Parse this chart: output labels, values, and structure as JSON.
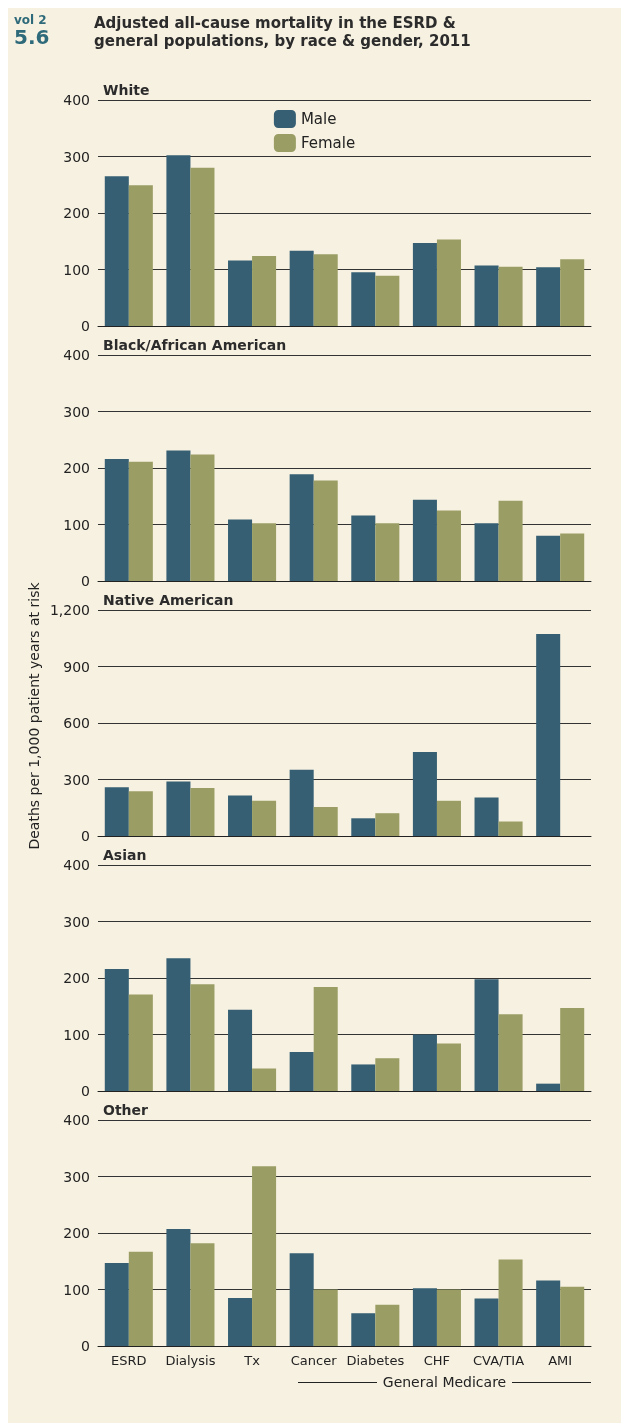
{
  "chart_data": [
    {
      "type": "bar",
      "title": "Adjusted all-cause mortality in the ESRD & general populations, by race & gender, 2011",
      "subtitle": "White",
      "annotations": [
        "vol 2",
        "5.6"
      ],
      "series": [
        {
          "name": "Male",
          "color": "#365f73",
          "values": [
            265,
            302,
            116,
            133,
            95,
            147,
            107,
            104
          ]
        },
        {
          "name": "Female",
          "color": "#9a9e64",
          "values": [
            249,
            280,
            124,
            127,
            89,
            153,
            105,
            118
          ]
        }
      ],
      "ylim": [
        0,
        400
      ],
      "yticks": [
        0,
        100,
        200,
        300,
        400
      ],
      "grid": "y",
      "legend": "top",
      "tick_labels": "y"
    },
    {
      "type": "bar",
      "subtitle": "Black/African American",
      "series": [
        {
          "color": "#365f73",
          "values": [
            216,
            231,
            109,
            189,
            116,
            144,
            102,
            80
          ]
        },
        {
          "color": "#9a9e64",
          "values": [
            211,
            224,
            102,
            178,
            102,
            125,
            142,
            84
          ]
        }
      ],
      "ylim": [
        0,
        400
      ],
      "yticks": [
        0,
        100,
        200,
        300,
        400
      ],
      "grid": "y",
      "tick_labels": "y"
    },
    {
      "type": "bar",
      "subtitle": "Native American",
      "ylabel": "Deaths per 1,000 patient years at risk",
      "series": [
        {
          "color": "#365f73",
          "values": [
            259,
            290,
            215,
            352,
            94,
            446,
            204,
            1073
          ]
        },
        {
          "color": "#9a9e64",
          "values": [
            237,
            255,
            187,
            154,
            121,
            187,
            77,
            null
          ]
        }
      ],
      "ylim": [
        0,
        1200
      ],
      "yticks": [
        0,
        300,
        600,
        900,
        {
          "value": 1200,
          "label": "1,200"
        }
      ],
      "grid": "y",
      "tick_labels": "y"
    },
    {
      "type": "bar",
      "subtitle": "Asian",
      "series": [
        {
          "color": "#365f73",
          "values": [
            216,
            235,
            144,
            69,
            47,
            100,
            198,
            13
          ]
        },
        {
          "color": "#9a9e64",
          "values": [
            171,
            189,
            40,
            184,
            58,
            84,
            136,
            147
          ]
        }
      ],
      "ylim": [
        0,
        400
      ],
      "yticks": [
        0,
        100,
        200,
        300,
        400
      ],
      "grid": "y",
      "tick_labels": "y"
    },
    {
      "type": "bar",
      "subtitle": "Other",
      "annotations": [
        "General Medicare"
      ],
      "categories": [
        "ESRD",
        "Dialysis",
        "Tx",
        "Cancer",
        "Diabetes",
        "CHF",
        "CVA/TIA",
        "AMI"
      ],
      "series": [
        {
          "color": "#365f73",
          "values": [
            147,
            207,
            85,
            164,
            58,
            102,
            84,
            116
          ]
        },
        {
          "color": "#9a9e64",
          "values": [
            167,
            182,
            318,
            100,
            73,
            100,
            153,
            105
          ]
        }
      ],
      "ylim": [
        0,
        400
      ],
      "yticks": [
        0,
        100,
        200,
        300,
        400
      ],
      "grid": "y"
    }
  ]
}
